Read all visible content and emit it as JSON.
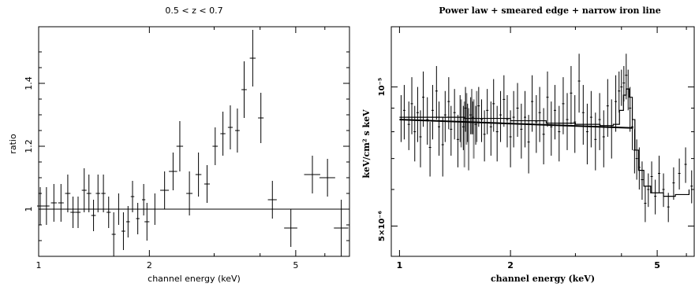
{
  "chart_data": [
    {
      "type": "scatter",
      "title": "0.5 < z < 0.7",
      "xlabel": "channel energy (keV)",
      "ylabel": "ratio",
      "xscale": "log",
      "xlim": [
        1,
        7
      ],
      "ylim": [
        0.85,
        1.58
      ],
      "xticks": [
        {
          "v": 1,
          "label": "1"
        },
        {
          "v": 2,
          "label": "2"
        },
        {
          "v": 5,
          "label": "5"
        }
      ],
      "yticks": [
        {
          "v": 1.0,
          "label": "1"
        },
        {
          "v": 1.2,
          "label": "1.2"
        },
        {
          "v": 1.4,
          "label": "1.4"
        }
      ],
      "reference_line": 1.0,
      "points": [
        {
          "x": 1.01,
          "y": 1.01,
          "xe": 0.02,
          "ye": 0.06
        },
        {
          "x": 1.05,
          "y": 1.01,
          "xe": 0.02,
          "ye": 0.06
        },
        {
          "x": 1.1,
          "y": 1.02,
          "xe": 0.02,
          "ye": 0.06
        },
        {
          "x": 1.15,
          "y": 1.02,
          "xe": 0.02,
          "ye": 0.06
        },
        {
          "x": 1.2,
          "y": 1.05,
          "xe": 0.02,
          "ye": 0.06
        },
        {
          "x": 1.24,
          "y": 0.99,
          "xe": 0.02,
          "ye": 0.05
        },
        {
          "x": 1.28,
          "y": 0.99,
          "xe": 0.02,
          "ye": 0.05
        },
        {
          "x": 1.33,
          "y": 1.06,
          "xe": 0.02,
          "ye": 0.07
        },
        {
          "x": 1.37,
          "y": 1.05,
          "xe": 0.02,
          "ye": 0.06
        },
        {
          "x": 1.41,
          "y": 0.98,
          "xe": 0.02,
          "ye": 0.05
        },
        {
          "x": 1.45,
          "y": 1.05,
          "xe": 0.02,
          "ye": 0.06
        },
        {
          "x": 1.5,
          "y": 1.05,
          "xe": 0.02,
          "ye": 0.06
        },
        {
          "x": 1.55,
          "y": 0.99,
          "xe": 0.02,
          "ye": 0.05
        },
        {
          "x": 1.6,
          "y": 0.92,
          "xe": 0.02,
          "ye": 0.07
        },
        {
          "x": 1.65,
          "y": 1.0,
          "xe": 0.02,
          "ye": 0.05
        },
        {
          "x": 1.7,
          "y": 0.93,
          "xe": 0.02,
          "ye": 0.06
        },
        {
          "x": 1.75,
          "y": 0.96,
          "xe": 0.02,
          "ye": 0.05
        },
        {
          "x": 1.8,
          "y": 1.04,
          "xe": 0.02,
          "ye": 0.05
        },
        {
          "x": 1.86,
          "y": 0.97,
          "xe": 0.02,
          "ye": 0.05
        },
        {
          "x": 1.93,
          "y": 1.03,
          "xe": 0.02,
          "ye": 0.05
        },
        {
          "x": 1.97,
          "y": 0.96,
          "xe": 0.03,
          "ye": 0.06
        },
        {
          "x": 2.07,
          "y": 1.0,
          "xe": 0.05,
          "ye": 0.05
        },
        {
          "x": 2.2,
          "y": 1.06,
          "xe": 0.06,
          "ye": 0.06
        },
        {
          "x": 2.32,
          "y": 1.12,
          "xe": 0.06,
          "ye": 0.06
        },
        {
          "x": 2.42,
          "y": 1.2,
          "xe": 0.05,
          "ye": 0.08
        },
        {
          "x": 2.57,
          "y": 1.05,
          "xe": 0.05,
          "ye": 0.07
        },
        {
          "x": 2.72,
          "y": 1.11,
          "xe": 0.05,
          "ye": 0.07
        },
        {
          "x": 2.87,
          "y": 1.08,
          "xe": 0.05,
          "ye": 0.06
        },
        {
          "x": 3.02,
          "y": 1.2,
          "xe": 0.05,
          "ye": 0.06
        },
        {
          "x": 3.17,
          "y": 1.24,
          "xe": 0.05,
          "ye": 0.07
        },
        {
          "x": 3.32,
          "y": 1.26,
          "xe": 0.05,
          "ye": 0.07
        },
        {
          "x": 3.47,
          "y": 1.25,
          "xe": 0.05,
          "ye": 0.07
        },
        {
          "x": 3.62,
          "y": 1.38,
          "xe": 0.06,
          "ye": 0.09
        },
        {
          "x": 3.82,
          "y": 1.48,
          "xe": 0.07,
          "ye": 0.09
        },
        {
          "x": 4.02,
          "y": 1.29,
          "xe": 0.07,
          "ye": 0.08
        },
        {
          "x": 4.32,
          "y": 1.03,
          "xe": 0.12,
          "ye": 0.06
        },
        {
          "x": 4.85,
          "y": 0.94,
          "xe": 0.2,
          "ye": 0.06
        },
        {
          "x": 5.55,
          "y": 1.11,
          "xe": 0.28,
          "ye": 0.06
        },
        {
          "x": 6.1,
          "y": 1.1,
          "xe": 0.3,
          "ye": 0.06
        },
        {
          "x": 6.65,
          "y": 0.94,
          "xe": 0.3,
          "ye": 0.09
        }
      ]
    },
    {
      "type": "scatter",
      "title": "Power law + smeared edge + narrow iron line",
      "xlabel": "channel energy (keV)",
      "ylabel": "keV/cm² s keV",
      "xscale": "log",
      "yscale": "log",
      "xlim": [
        0.95,
        6.3
      ],
      "ylim": [
        4.3e-06,
        1.35e-05
      ],
      "xticks": [
        {
          "v": 1,
          "label": "1"
        },
        {
          "v": 2,
          "label": "2"
        },
        {
          "v": 5,
          "label": "5"
        }
      ],
      "yticks": [
        {
          "v": 1e-05,
          "label": "10⁻⁵"
        },
        {
          "v": 5e-06,
          "label": "5×10⁻⁶"
        }
      ],
      "model_powerlaw": [
        [
          1.0,
          8.5e-06
        ],
        [
          4.3,
          8.15e-06
        ]
      ],
      "model_total": [
        [
          1.0,
          8.6e-06
        ],
        [
          1.5,
          8.55e-06
        ],
        [
          2.0,
          8.45e-06
        ],
        [
          2.5,
          8.35e-06
        ],
        [
          3.0,
          8.3e-06
        ],
        [
          3.5,
          8.25e-06
        ],
        [
          3.8,
          8.3e-06
        ],
        [
          3.95,
          8.9e-06
        ],
        [
          4.05,
          9.6e-06
        ],
        [
          4.12,
          9.9e-06
        ],
        [
          4.2,
          9.5e-06
        ],
        [
          4.28,
          8.5e-06
        ],
        [
          4.35,
          7.3e-06
        ],
        [
          4.45,
          6.6e-06
        ],
        [
          4.6,
          6.1e-06
        ],
        [
          4.8,
          5.9e-06
        ],
        [
          5.2,
          5.8e-06
        ],
        [
          5.6,
          5.85e-06
        ],
        [
          6.1,
          6e-06
        ]
      ],
      "points": [
        [
          1.01,
          8.6e-06,
          1e-06
        ],
        [
          1.03,
          8.9e-06,
          1.2e-06
        ],
        [
          1.06,
          8.3e-06,
          1e-06
        ],
        [
          1.08,
          9.2e-06,
          1.3e-06
        ],
        [
          1.1,
          8e-06,
          1.1e-06
        ],
        [
          1.12,
          8.8e-06,
          1.2e-06
        ],
        [
          1.14,
          7.8e-06,
          1.1e-06
        ],
        [
          1.16,
          9.5e-06,
          1.3e-06
        ],
        [
          1.19,
          8.5e-06,
          1e-06
        ],
        [
          1.21,
          7.4e-06,
          1e-06
        ],
        [
          1.23,
          8.9e-06,
          1.2e-06
        ],
        [
          1.26,
          9.8e-06,
          1.3e-06
        ],
        [
          1.28,
          8.2e-06,
          1.1e-06
        ],
        [
          1.31,
          7.5e-06,
          1.1e-06
        ],
        [
          1.33,
          8.7e-06,
          1.1e-06
        ],
        [
          1.36,
          9.3e-06,
          1.2e-06
        ],
        [
          1.38,
          8.1e-06,
          1e-06
        ],
        [
          1.41,
          8.8e-06,
          1.1e-06
        ],
        [
          1.44,
          7.7e-06,
          1e-06
        ],
        [
          1.46,
          8.6e-06,
          1e-06
        ],
        [
          1.49,
          8.2e-06,
          9e-07
        ],
        [
          1.51,
          9e-06,
          1e-06
        ],
        [
          1.53,
          8.4e-06,
          8e-07
        ],
        [
          1.56,
          8.7e-06,
          8e-07
        ],
        [
          1.58,
          8.6e-06,
          7e-07
        ],
        [
          1.61,
          8.3e-06,
          8e-07
        ],
        [
          1.64,
          9.1e-06,
          9e-07
        ],
        [
          1.67,
          8.5e-06,
          9e-07
        ],
        [
          1.7,
          7.9e-06,
          1e-06
        ],
        [
          1.73,
          8.9e-06,
          1e-06
        ],
        [
          1.77,
          8.2e-06,
          1.1e-06
        ],
        [
          1.8,
          9.2e-06,
          1.2e-06
        ],
        [
          1.84,
          8e-06,
          1.1e-06
        ],
        [
          1.88,
          8.7e-06,
          1.1e-06
        ],
        [
          1.92,
          9.4e-06,
          1.2e-06
        ],
        [
          1.96,
          8.5e-06,
          1.1e-06
        ],
        [
          2.0,
          7.8e-06,
          1.1e-06
        ],
        [
          2.04,
          8.6e-06,
          1.2e-06
        ],
        [
          2.09,
          9e-06,
          1.2e-06
        ],
        [
          2.14,
          8.1e-06,
          1.1e-06
        ],
        [
          2.19,
          8.6e-06,
          1.2e-06
        ],
        [
          2.24,
          7.6e-06,
          1.1e-06
        ],
        [
          2.29,
          9.3e-06,
          1.3e-06
        ],
        [
          2.35,
          8.4e-06,
          1.2e-06
        ],
        [
          2.4,
          8.8e-06,
          1.2e-06
        ],
        [
          2.46,
          7.9e-06,
          1.1e-06
        ],
        [
          2.52,
          9.5e-06,
          1.3e-06
        ],
        [
          2.58,
          8.2e-06,
          1.1e-06
        ],
        [
          2.64,
          8.9e-06,
          1.2e-06
        ],
        [
          2.71,
          8e-06,
          1.1e-06
        ],
        [
          2.78,
          9.2e-06,
          1.3e-06
        ],
        [
          2.85,
          8.5e-06,
          1.2e-06
        ],
        [
          2.92,
          9.7e-06,
          1.4e-06
        ],
        [
          2.99,
          8.4e-06,
          1.2e-06
        ],
        [
          3.07,
          1.03e-05,
          1.5e-06
        ],
        [
          3.15,
          8.8e-06,
          1.3e-06
        ],
        [
          3.23,
          8e-06,
          1.2e-06
        ],
        [
          3.31,
          8.6e-06,
          1.2e-06
        ],
        [
          3.4,
          7.7e-06,
          1.1e-06
        ],
        [
          3.49,
          8.5e-06,
          1.2e-06
        ],
        [
          3.58,
          7.8e-06,
          1.1e-06
        ],
        [
          3.67,
          9.1e-06,
          1.3e-06
        ],
        [
          3.76,
          8.2e-06,
          1.2e-06
        ],
        [
          3.86,
          9.3e-06,
          1.3e-06
        ],
        [
          3.94,
          9.8e-06,
          1e-06
        ],
        [
          4.0,
          1e-05,
          9e-07
        ],
        [
          4.06,
          1.02e-05,
          9e-07
        ],
        [
          4.12,
          1.06e-05,
          1.2e-06
        ],
        [
          4.17,
          9.9e-06,
          1e-06
        ],
        [
          4.22,
          9e-06,
          1e-06
        ],
        [
          4.28,
          8.2e-06,
          9e-07
        ],
        [
          4.34,
          7.3e-06,
          8e-07
        ],
        [
          4.4,
          7e-06,
          7e-07
        ],
        [
          4.47,
          6.7e-06,
          7e-07
        ],
        [
          4.55,
          6.3e-06,
          6e-07
        ],
        [
          4.64,
          5.6e-06,
          5e-07
        ],
        [
          4.73,
          6e-06,
          5e-07
        ],
        [
          4.83,
          6.4e-06,
          5e-07
        ],
        [
          4.94,
          5.8e-06,
          5e-07
        ],
        [
          5.06,
          6.5e-06,
          6e-07
        ],
        [
          5.2,
          6e-06,
          5e-07
        ],
        [
          5.36,
          5.5e-06,
          4e-07
        ],
        [
          5.54,
          6.2e-06,
          5e-07
        ],
        [
          5.74,
          6.5e-06,
          5e-07
        ],
        [
          5.97,
          6.8e-06,
          6e-07
        ],
        [
          6.2,
          6.1e-06,
          5e-07
        ]
      ],
      "points_grey": [
        [
          1.47,
          8.4e-06,
          1e-06
        ],
        [
          1.5,
          8e-06,
          1.3e-06
        ],
        [
          1.52,
          8.6e-06,
          1.1e-06
        ],
        [
          1.54,
          7.8e-06,
          1.2e-06
        ],
        [
          1.57,
          8.9e-06,
          1e-06
        ],
        [
          1.59,
          8.2e-06,
          1.2e-06
        ],
        [
          1.62,
          8.7e-06,
          1.1e-06
        ]
      ]
    }
  ]
}
